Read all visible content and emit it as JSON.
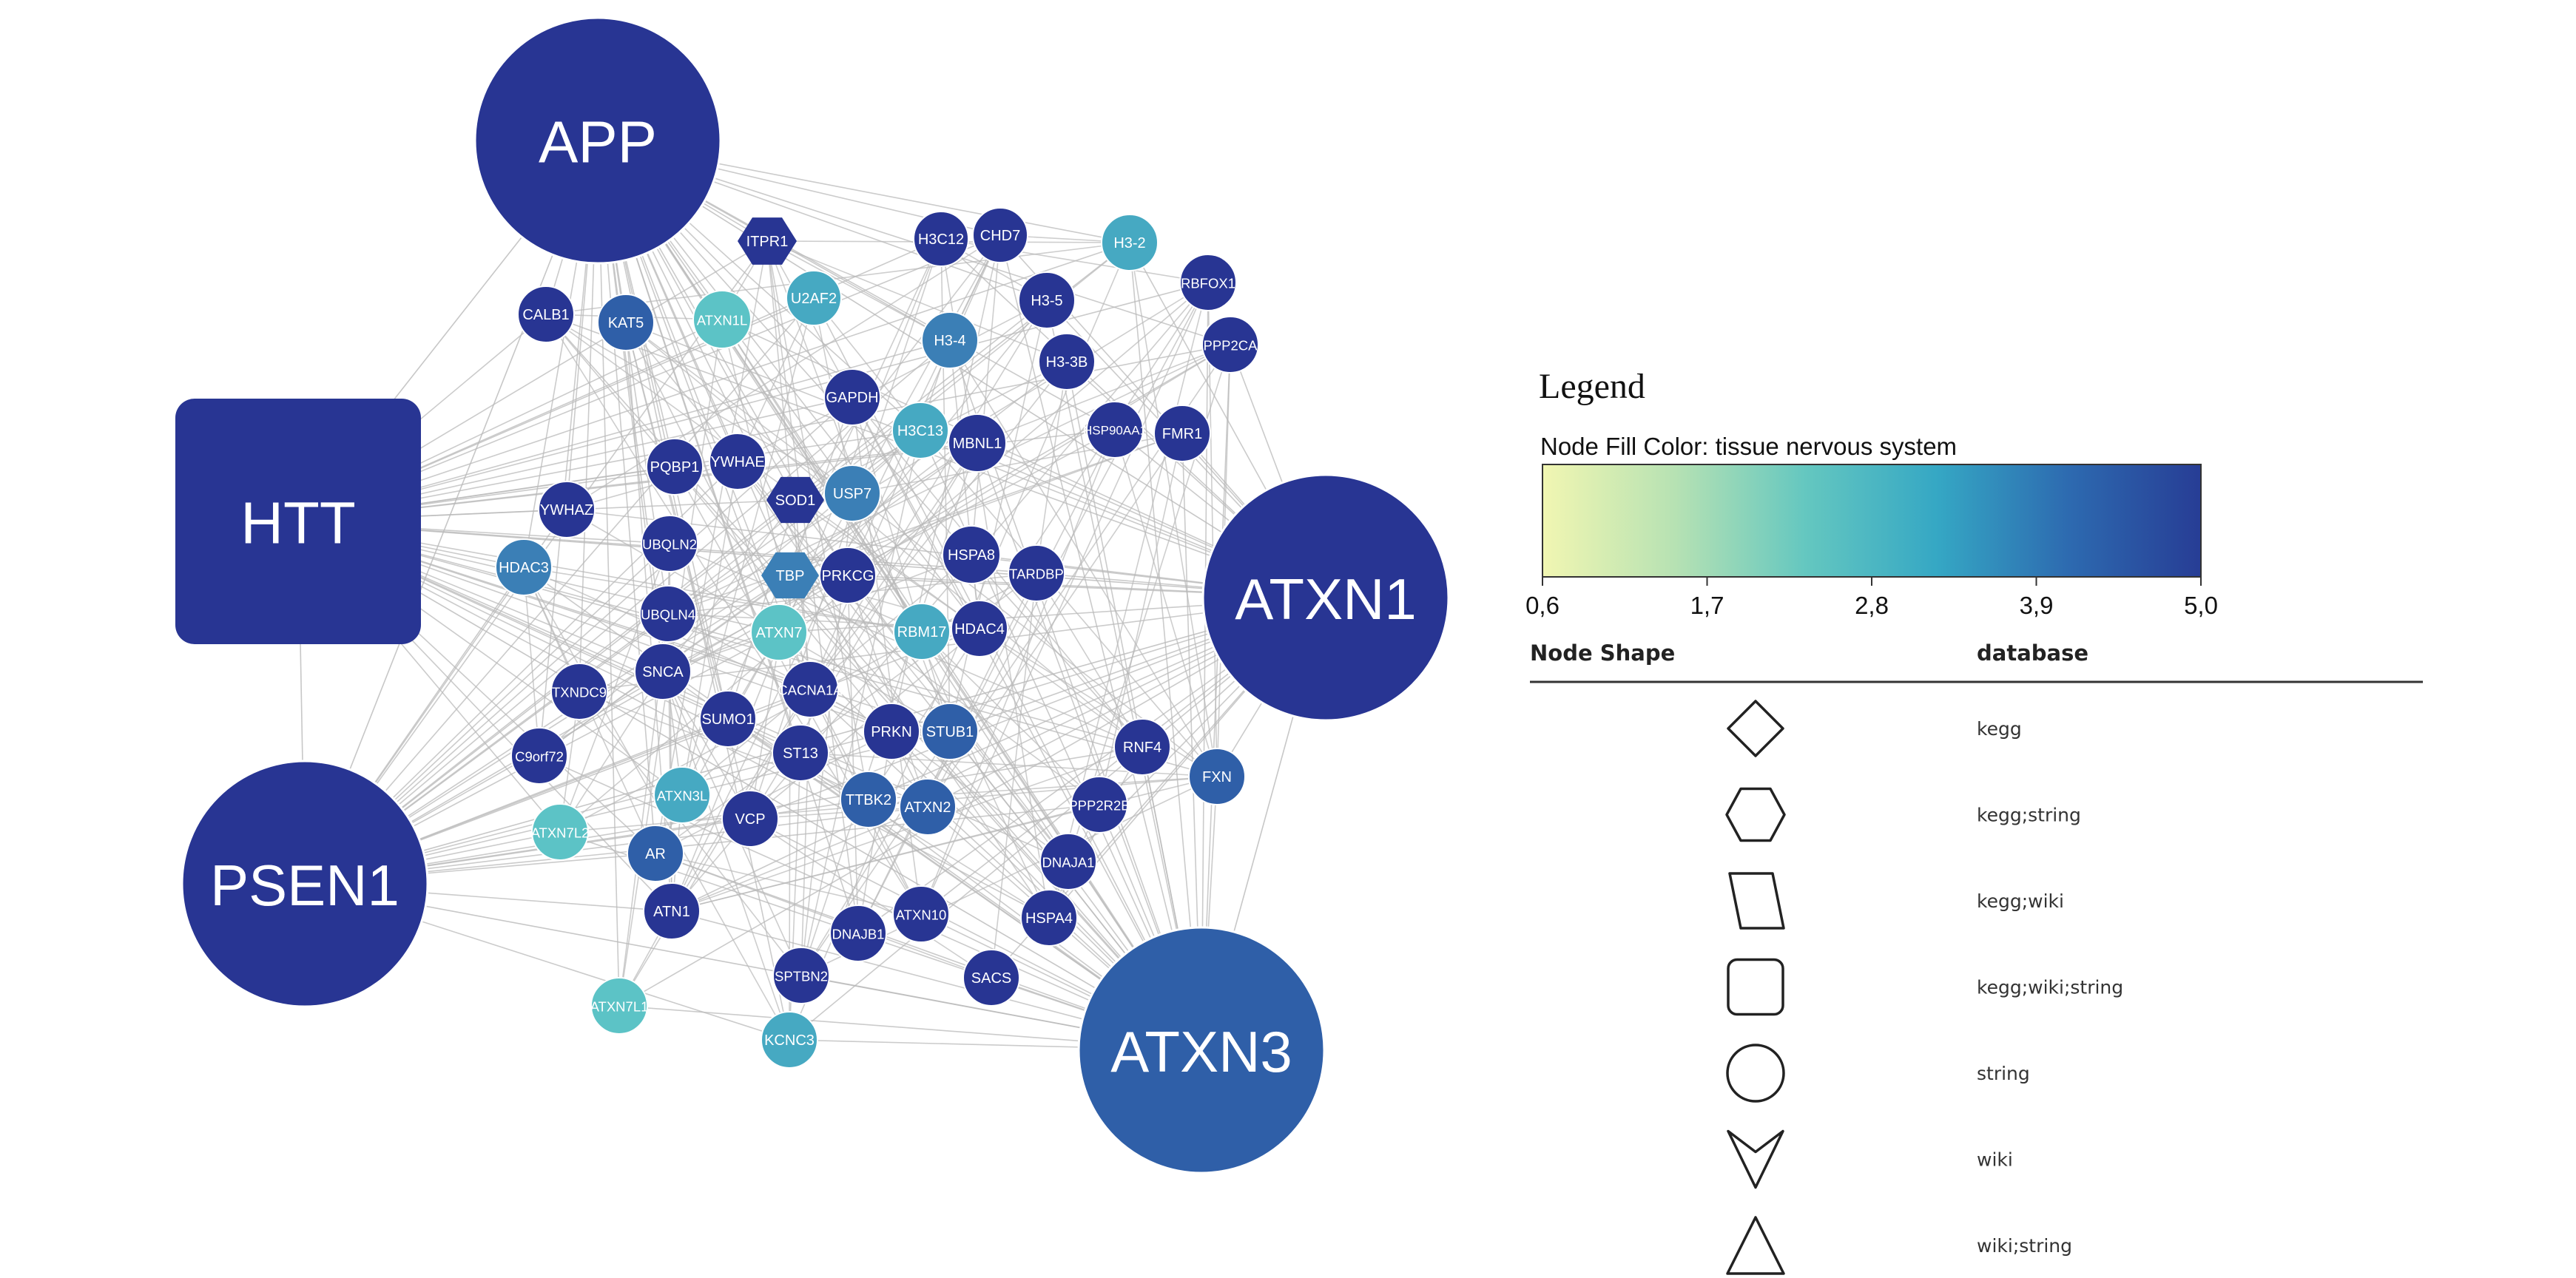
{
  "colors": {
    "dark_blue": "#283593",
    "medium_blue": "#2f5fa8",
    "steel_blue": "#3b7fb6",
    "teal": "#46a9c2",
    "light_teal": "#5cc3c6",
    "edge": "#b9b9b9",
    "gradient_stops": [
      "#f1f6b2",
      "#b7e2b3",
      "#64c7c0",
      "#35a7c4",
      "#2d6ab0",
      "#273d95"
    ]
  },
  "network": {
    "nodes": [
      {
        "id": "APP",
        "shape": "circle",
        "color": "dark_blue",
        "hub": true
      },
      {
        "id": "HTT",
        "shape": "roundrect",
        "color": "dark_blue",
        "hub": true
      },
      {
        "id": "ATXN1",
        "shape": "circle",
        "color": "dark_blue",
        "hub": true
      },
      {
        "id": "PSEN1",
        "shape": "circle",
        "color": "dark_blue",
        "hub": true
      },
      {
        "id": "ATXN3",
        "shape": "circle",
        "color": "medium_blue",
        "hub": true
      },
      {
        "id": "ITPR1",
        "shape": "hexagon",
        "color": "dark_blue"
      },
      {
        "id": "H3C12",
        "shape": "circle",
        "color": "dark_blue"
      },
      {
        "id": "CHD7",
        "shape": "circle",
        "color": "dark_blue"
      },
      {
        "id": "H3-2",
        "shape": "circle",
        "color": "teal"
      },
      {
        "id": "RBFOX1",
        "shape": "circle",
        "color": "dark_blue"
      },
      {
        "id": "CALB1",
        "shape": "circle",
        "color": "dark_blue"
      },
      {
        "id": "KAT5",
        "shape": "circle",
        "color": "medium_blue"
      },
      {
        "id": "ATXN1L",
        "shape": "circle",
        "color": "light_teal"
      },
      {
        "id": "U2AF2",
        "shape": "circle",
        "color": "teal"
      },
      {
        "id": "H3-5",
        "shape": "circle",
        "color": "dark_blue"
      },
      {
        "id": "PPP2CA",
        "shape": "circle",
        "color": "dark_blue"
      },
      {
        "id": "H3-4",
        "shape": "circle",
        "color": "steel_blue"
      },
      {
        "id": "H3-3B",
        "shape": "circle",
        "color": "dark_blue"
      },
      {
        "id": "GAPDH",
        "shape": "circle",
        "color": "dark_blue"
      },
      {
        "id": "H3C13",
        "shape": "circle",
        "color": "teal"
      },
      {
        "id": "MBNL1",
        "shape": "circle",
        "color": "dark_blue"
      },
      {
        "id": "HSP90AA1",
        "shape": "circle",
        "color": "dark_blue"
      },
      {
        "id": "FMR1",
        "shape": "circle",
        "color": "dark_blue"
      },
      {
        "id": "PQBP1",
        "shape": "circle",
        "color": "dark_blue"
      },
      {
        "id": "YWHAE",
        "shape": "circle",
        "color": "dark_blue"
      },
      {
        "id": "SOD1",
        "shape": "hexagon",
        "color": "dark_blue"
      },
      {
        "id": "USP7",
        "shape": "circle",
        "color": "steel_blue"
      },
      {
        "id": "YWHAZ",
        "shape": "circle",
        "color": "dark_blue"
      },
      {
        "id": "UBQLN2",
        "shape": "circle",
        "color": "dark_blue"
      },
      {
        "id": "HDAC3",
        "shape": "circle",
        "color": "steel_blue"
      },
      {
        "id": "TBP",
        "shape": "hexagon",
        "color": "steel_blue"
      },
      {
        "id": "PRKCG",
        "shape": "circle",
        "color": "dark_blue"
      },
      {
        "id": "HSPA8",
        "shape": "circle",
        "color": "dark_blue"
      },
      {
        "id": "TARDBP",
        "shape": "circle",
        "color": "dark_blue"
      },
      {
        "id": "UBQLN4",
        "shape": "circle",
        "color": "dark_blue"
      },
      {
        "id": "ATXN7",
        "shape": "circle",
        "color": "light_teal"
      },
      {
        "id": "RBM17",
        "shape": "circle",
        "color": "teal"
      },
      {
        "id": "HDAC4",
        "shape": "circle",
        "color": "dark_blue"
      },
      {
        "id": "SNCA",
        "shape": "circle",
        "color": "dark_blue"
      },
      {
        "id": "TXNDC9",
        "shape": "circle",
        "color": "dark_blue"
      },
      {
        "id": "CACNA1A",
        "shape": "circle",
        "color": "dark_blue"
      },
      {
        "id": "SUMO1",
        "shape": "circle",
        "color": "dark_blue"
      },
      {
        "id": "PRKN",
        "shape": "circle",
        "color": "dark_blue"
      },
      {
        "id": "STUB1",
        "shape": "circle",
        "color": "medium_blue"
      },
      {
        "id": "C9orf72",
        "shape": "circle",
        "color": "dark_blue"
      },
      {
        "id": "ST13",
        "shape": "circle",
        "color": "dark_blue"
      },
      {
        "id": "RNF4",
        "shape": "circle",
        "color": "dark_blue"
      },
      {
        "id": "FXN",
        "shape": "circle",
        "color": "medium_blue"
      },
      {
        "id": "ATXN3L",
        "shape": "circle",
        "color": "teal"
      },
      {
        "id": "TTBK2",
        "shape": "circle",
        "color": "medium_blue"
      },
      {
        "id": "ATXN2",
        "shape": "circle",
        "color": "medium_blue"
      },
      {
        "id": "PPP2R2B",
        "shape": "circle",
        "color": "dark_blue"
      },
      {
        "id": "ATXN7L2",
        "shape": "circle",
        "color": "light_teal"
      },
      {
        "id": "VCP",
        "shape": "circle",
        "color": "dark_blue"
      },
      {
        "id": "AR",
        "shape": "circle",
        "color": "medium_blue"
      },
      {
        "id": "DNAJA1",
        "shape": "circle",
        "color": "dark_blue"
      },
      {
        "id": "ATN1",
        "shape": "circle",
        "color": "dark_blue"
      },
      {
        "id": "ATXN10",
        "shape": "circle",
        "color": "dark_blue"
      },
      {
        "id": "DNAJB1",
        "shape": "circle",
        "color": "dark_blue"
      },
      {
        "id": "HSPA4",
        "shape": "circle",
        "color": "dark_blue"
      },
      {
        "id": "SPTBN2",
        "shape": "circle",
        "color": "dark_blue"
      },
      {
        "id": "SACS",
        "shape": "circle",
        "color": "dark_blue"
      },
      {
        "id": "ATXN7L1",
        "shape": "circle",
        "color": "light_teal"
      },
      {
        "id": "KCNC3",
        "shape": "circle",
        "color": "teal"
      }
    ]
  },
  "legend": {
    "title": "Legend",
    "fill_label": "Node Fill Color:  tissue  nervous  system",
    "scale_ticks": [
      "0,6",
      "1,7",
      "2,8",
      "3,9",
      "5,0"
    ],
    "shape_header": "Node Shape",
    "db_header": "database",
    "shapes": [
      {
        "icon": "diamond-icon",
        "label": "kegg"
      },
      {
        "icon": "hexagon-icon",
        "label": "kegg;string"
      },
      {
        "icon": "parallelogram-icon",
        "label": "kegg;wiki"
      },
      {
        "icon": "round-rectangle-icon",
        "label": "kegg;wiki;string"
      },
      {
        "icon": "circle-icon",
        "label": "string"
      },
      {
        "icon": "v-arrow-icon",
        "label": "wiki"
      },
      {
        "icon": "triangle-icon",
        "label": "wiki;string"
      }
    ]
  }
}
